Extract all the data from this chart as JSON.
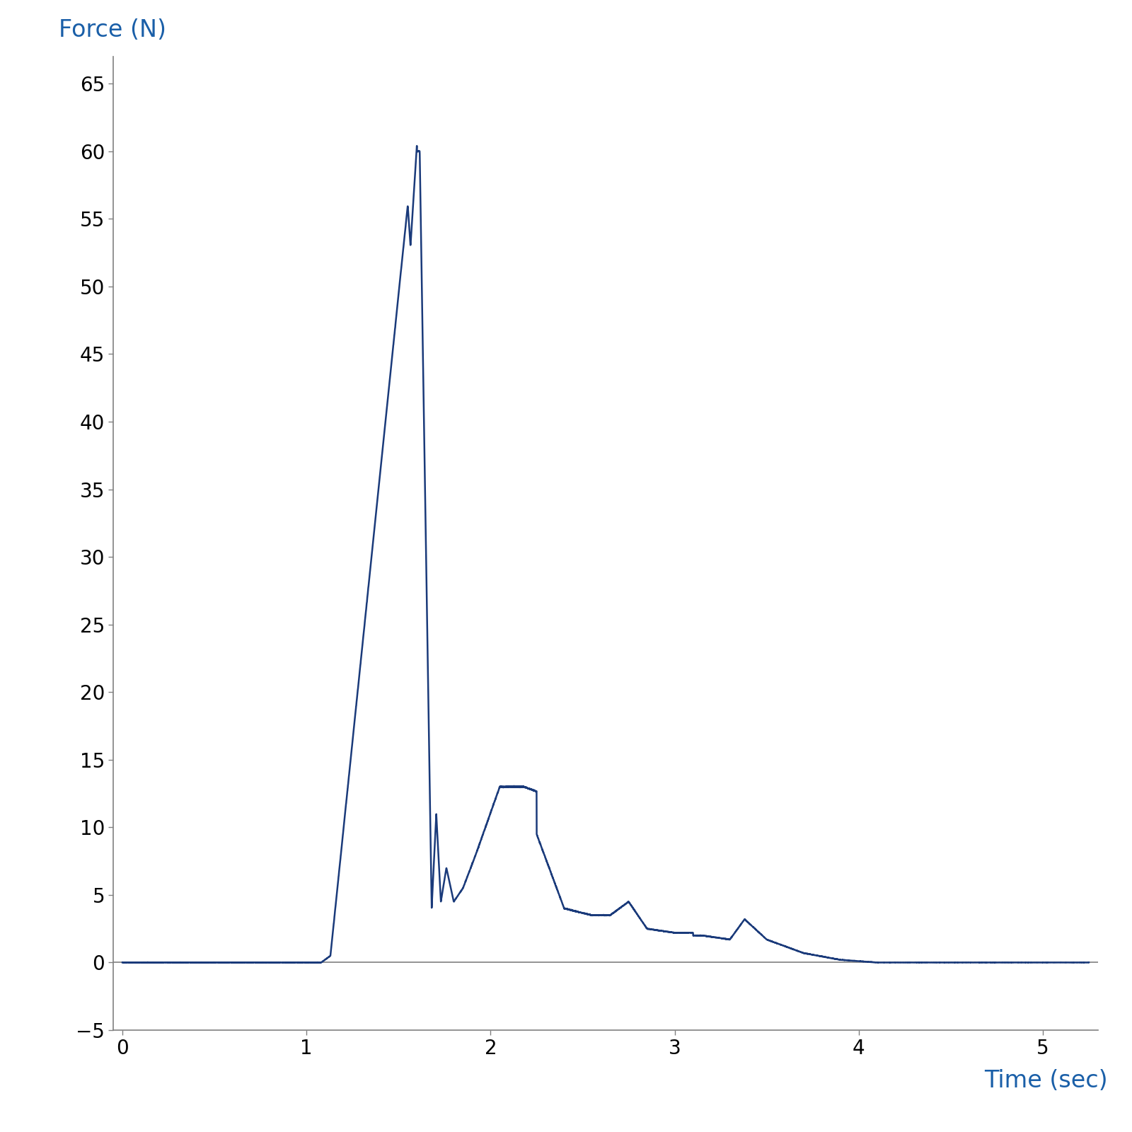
{
  "xlabel": "Time (sec)",
  "ylabel": "Force (N)",
  "xlabel_color": "#1a5fa8",
  "ylabel_color": "#1a5fa8",
  "line_color": "#1a3a7a",
  "line_width": 1.8,
  "xlim": [
    -0.05,
    5.3
  ],
  "ylim": [
    -5,
    67
  ],
  "xticks": [
    0,
    1,
    2,
    3,
    4,
    5
  ],
  "yticks": [
    -5,
    0,
    5,
    10,
    15,
    20,
    25,
    30,
    35,
    40,
    45,
    50,
    55,
    60,
    65
  ],
  "axis_color": "#808080",
  "tick_color": "#000000",
  "background_color": "#ffffff",
  "xlabel_fontsize": 24,
  "ylabel_fontsize": 24,
  "tick_fontsize": 20
}
